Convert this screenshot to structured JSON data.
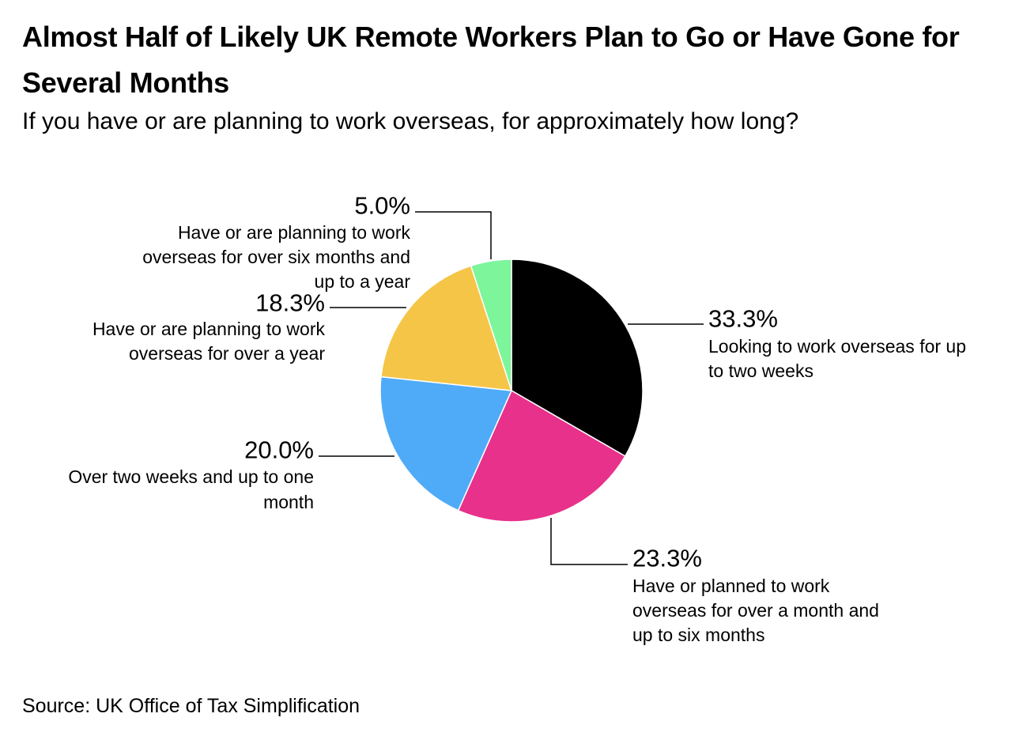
{
  "title": "Almost Half of Likely UK Remote Workers Plan to Go or Have Gone for Several Months",
  "subtitle": "If you have or are planning to work overseas, for approximately how long?",
  "source": "Source: UK Office of Tax Simplification",
  "chart_data": {
    "type": "pie",
    "title": "Almost Half of Likely UK Remote Workers Plan to Go or Have Gone for Several Months",
    "subtitle": "If you have or are planning to work overseas, for approximately how long?",
    "slices": [
      {
        "label": "Looking to work overseas for up to two weeks",
        "label_lines": [
          "Looking to work overseas for up",
          "to two weeks"
        ],
        "value": 33.3,
        "value_label": "33.3%",
        "color": "#000000"
      },
      {
        "label": "Have or planned to work overseas for over a month and up to six months",
        "label_lines": [
          "Have or planned to work",
          "overseas for over a month and",
          "up to six months"
        ],
        "value": 23.3,
        "value_label": "23.3%",
        "color": "#e8318a"
      },
      {
        "label": "Over two weeks and up to one month",
        "label_lines": [
          "Over two weeks and up to one",
          "month"
        ],
        "value": 20.0,
        "value_label": "20.0%",
        "color": "#4fabf7"
      },
      {
        "label": "Have or are planning to work overseas for over a year",
        "label_lines": [
          "Have or are planning to work",
          "overseas for over a year"
        ],
        "value": 18.3,
        "value_label": "18.3%",
        "color": "#f5c548"
      },
      {
        "label": "Have or are planning to work overseas for over six months and up to a year",
        "label_lines": [
          "Have or are planning to work",
          "overseas for over six months and",
          "up to a year"
        ],
        "value": 5.0,
        "value_label": "5.0%",
        "color": "#7df59b"
      }
    ],
    "start_angle_deg": 0,
    "direction": "clockwise",
    "legend": "none"
  }
}
